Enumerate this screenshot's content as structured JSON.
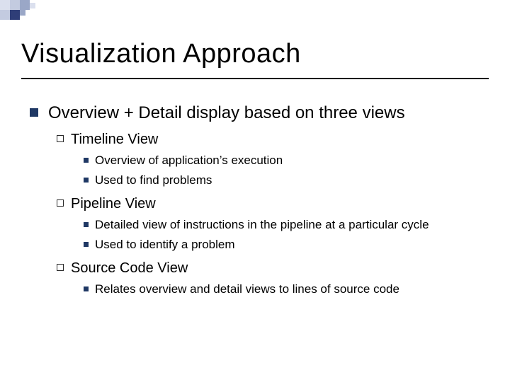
{
  "deco": {
    "colors": {
      "dark": "#2f3e78",
      "mid": "#9aa7c7",
      "light": "#c3cbe0",
      "pale": "#dbe0ee"
    }
  },
  "title": "Visualization Approach",
  "l1": "Overview + Detail display based on three views",
  "sections": [
    {
      "heading": "Timeline View",
      "items": [
        "Overview of application’s execution",
        "Used to find problems"
      ]
    },
    {
      "heading": "Pipeline View",
      "items": [
        "Detailed view of instructions in the pipeline at a particular cycle",
        "Used to identify a problem"
      ]
    },
    {
      "heading": "Source Code View",
      "items": [
        "Relates overview and detail views to lines of source code"
      ]
    }
  ]
}
